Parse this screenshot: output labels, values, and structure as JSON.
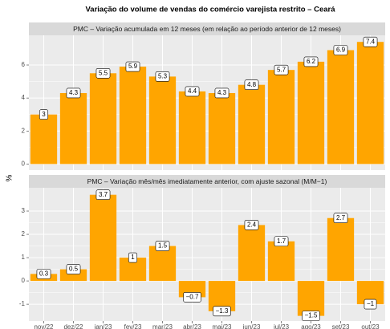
{
  "title": "Variação do volume de vendas do comércio varejista restrito – Ceará",
  "y_label": "%",
  "chart_data": [
    {
      "type": "bar",
      "title": "PMC – Variação acumulada em 12 meses (em relação ao período anterior de 12 meses)",
      "values": [
        3,
        4.3,
        5.5,
        5.9,
        5.3,
        4.4,
        4.3,
        4.8,
        5.7,
        6.2,
        6.9,
        7.4
      ],
      "color": "#ffa500",
      "ylim": [
        -0.37,
        7.8
      ],
      "yticks": [
        0,
        2,
        4,
        6
      ],
      "grid": true
    },
    {
      "type": "bar",
      "title": "PMC – Variação mês/mês imediatamente anterior, com ajuste sazonal (M/M−1)",
      "categories": [
        "nov/22",
        "dez/22",
        "jan/23",
        "fev/23",
        "mar/23",
        "abr/23",
        "mai/23",
        "jun/23",
        "jul/23",
        "ago/23",
        "set/23",
        "out/23"
      ],
      "values": [
        0.3,
        0.5,
        3.7,
        1,
        1.5,
        -0.7,
        -1.3,
        2.4,
        1.7,
        -1.5,
        2.7,
        -1
      ],
      "value_labels": [
        "0.3",
        "0.5",
        "3.7",
        "1",
        "1.5",
        "−0.7",
        "−1.3",
        "2.4",
        "1.7",
        "−1.5",
        "2.7",
        "−1"
      ],
      "color": "#ffa500",
      "ylim": [
        -1.72,
        4.0
      ],
      "yticks": [
        -1,
        0,
        1,
        2,
        3
      ],
      "grid": true
    }
  ]
}
